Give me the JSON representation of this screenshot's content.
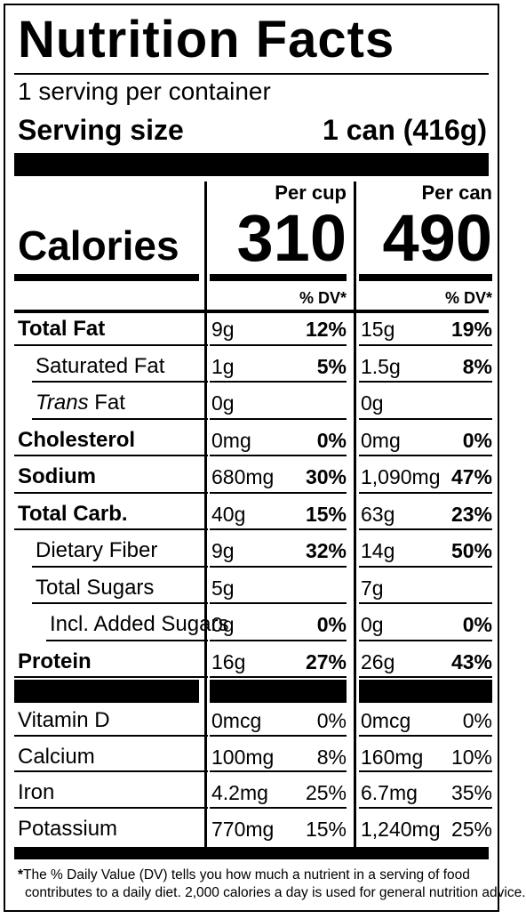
{
  "title": "Nutrition Facts",
  "servings_per_container": "1 serving per container",
  "serving_size_label": "Serving size",
  "serving_size_value": "1 can (416g)",
  "columns": {
    "cup": "Per cup",
    "can": "Per can"
  },
  "calories_label": "Calories",
  "calories": {
    "cup": "310",
    "can": "490"
  },
  "dv_header": "% DV*",
  "nutrients": [
    {
      "label": "Total Fat",
      "cup_amt": "9g",
      "cup_dv": "12%",
      "can_amt": "15g",
      "can_dv": "19%"
    },
    {
      "label": "Saturated Fat",
      "cup_amt": "1g",
      "cup_dv": "5%",
      "can_amt": "1.5g",
      "can_dv": "8%"
    },
    {
      "label_italic": "Trans",
      "label": " Fat",
      "cup_amt": "0g",
      "cup_dv": "",
      "can_amt": "0g",
      "can_dv": ""
    },
    {
      "label": "Cholesterol",
      "cup_amt": "0mg",
      "cup_dv": "0%",
      "can_amt": "0mg",
      "can_dv": "0%"
    },
    {
      "label": "Sodium",
      "cup_amt": "680mg",
      "cup_dv": "30%",
      "can_amt": "1,090mg",
      "can_dv": "47%"
    },
    {
      "label": "Total Carb.",
      "cup_amt": "40g",
      "cup_dv": "15%",
      "can_amt": "63g",
      "can_dv": "23%"
    },
    {
      "label": "Dietary Fiber",
      "cup_amt": "9g",
      "cup_dv": "32%",
      "can_amt": "14g",
      "can_dv": "50%"
    },
    {
      "label": "Total Sugars",
      "cup_amt": "5g",
      "cup_dv": "",
      "can_amt": "7g",
      "can_dv": ""
    },
    {
      "label": "Incl. Added Sugars",
      "cup_amt": "0g",
      "cup_dv": "0%",
      "can_amt": "0g",
      "can_dv": "0%"
    },
    {
      "label": "Protein",
      "cup_amt": "16g",
      "cup_dv": "27%",
      "can_amt": "26g",
      "can_dv": "43%"
    }
  ],
  "micronutrients": [
    {
      "label": "Vitamin D",
      "cup_amt": "0mcg",
      "cup_dv": "0%",
      "can_amt": "0mcg",
      "can_dv": "0%"
    },
    {
      "label": "Calcium",
      "cup_amt": "100mg",
      "cup_dv": "8%",
      "can_amt": "160mg",
      "can_dv": "10%"
    },
    {
      "label": "Iron",
      "cup_amt": "4.2mg",
      "cup_dv": "25%",
      "can_amt": "6.7mg",
      "can_dv": "35%"
    },
    {
      "label": "Potassium",
      "cup_amt": "770mg",
      "cup_dv": "15%",
      "can_amt": "1,240mg",
      "can_dv": "25%"
    }
  ],
  "footnote_line1": "The % Daily Value (DV) tells you how much a nutrient in a serving of food",
  "footnote_line2": "contributes to a daily diet. 2,000 calories a day is used for general nutrition advice.",
  "footnote_mark": "*"
}
